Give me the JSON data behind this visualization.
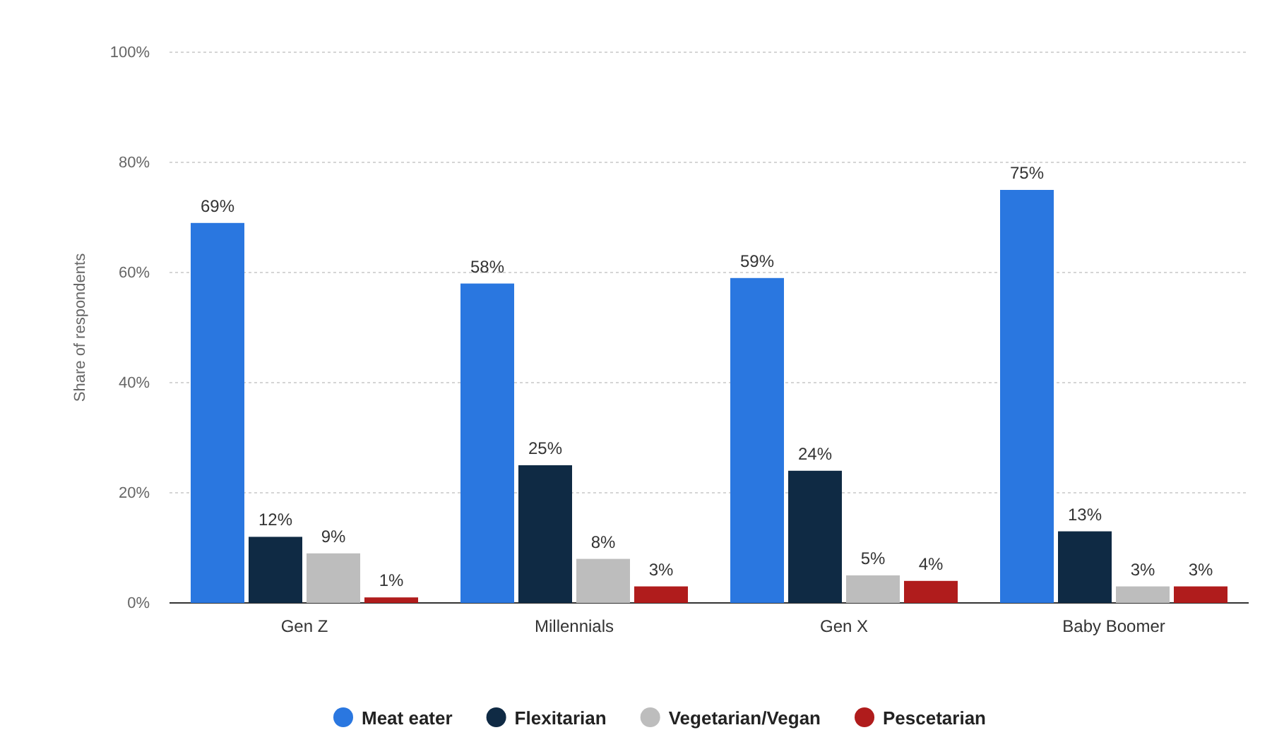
{
  "chart_data": {
    "type": "bar",
    "ylabel": "Share of respondents",
    "categories": [
      "Gen Z",
      "Millennials",
      "Gen X",
      "Baby Boomer"
    ],
    "series": [
      {
        "name": "Meat eater",
        "color": "#2a77e0",
        "values": [
          69,
          58,
          59,
          75
        ],
        "value_labels": [
          "69%",
          "58%",
          "59%",
          "75%"
        ]
      },
      {
        "name": "Flexitarian",
        "color": "#0f2a44",
        "values": [
          12,
          25,
          24,
          13
        ],
        "value_labels": [
          "12%",
          "25%",
          "24%",
          "13%"
        ]
      },
      {
        "name": "Vegetarian/Vegan",
        "color": "#bdbdbd",
        "values": [
          9,
          8,
          5,
          3
        ],
        "value_labels": [
          "9%",
          "8%",
          "5%",
          "3%"
        ]
      },
      {
        "name": "Pescetarian",
        "color": "#b01c1c",
        "values": [
          1,
          3,
          4,
          3
        ],
        "value_labels": [
          "1%",
          "3%",
          "4%",
          "3%"
        ]
      }
    ],
    "ylim": [
      0,
      100
    ],
    "yticks": [
      {
        "value": 0,
        "label": "0%"
      },
      {
        "value": 20,
        "label": "20%"
      },
      {
        "value": 40,
        "label": "40%"
      },
      {
        "value": 60,
        "label": "60%"
      },
      {
        "value": 80,
        "label": "80%"
      },
      {
        "value": 100,
        "label": "100%"
      }
    ],
    "grid": "y",
    "legend": "bottom"
  }
}
